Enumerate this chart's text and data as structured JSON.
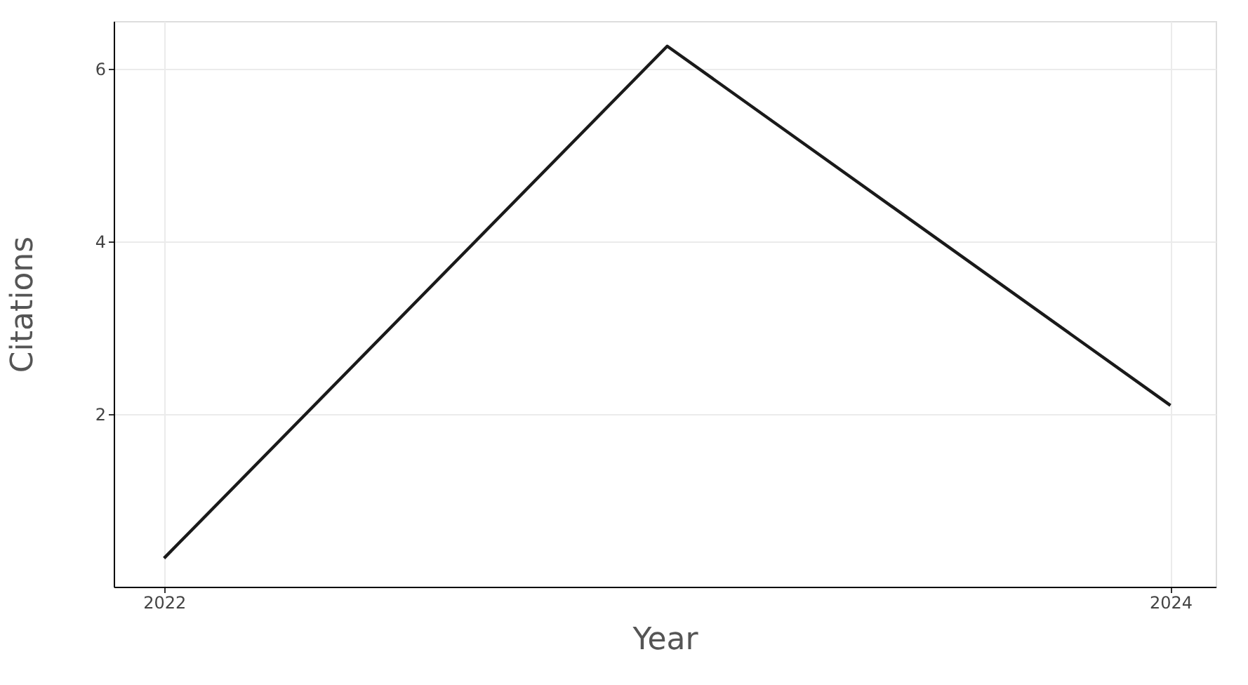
{
  "chart_data": {
    "type": "line",
    "xlabel": "Year",
    "ylabel": "Citations",
    "x": [
      2022,
      2023,
      2024
    ],
    "series": [
      {
        "color": "#1a1a1a",
        "values": [
          0.33,
          6.26,
          2.1
        ]
      }
    ],
    "xlim": [
      2021.9,
      2024.09
    ],
    "xticks": [
      2022,
      2024
    ],
    "ylim": [
      0,
      6.55
    ],
    "yticks": [
      2,
      4,
      6
    ],
    "grid": true,
    "legend": false,
    "marker": "none",
    "line_style": "solid"
  }
}
